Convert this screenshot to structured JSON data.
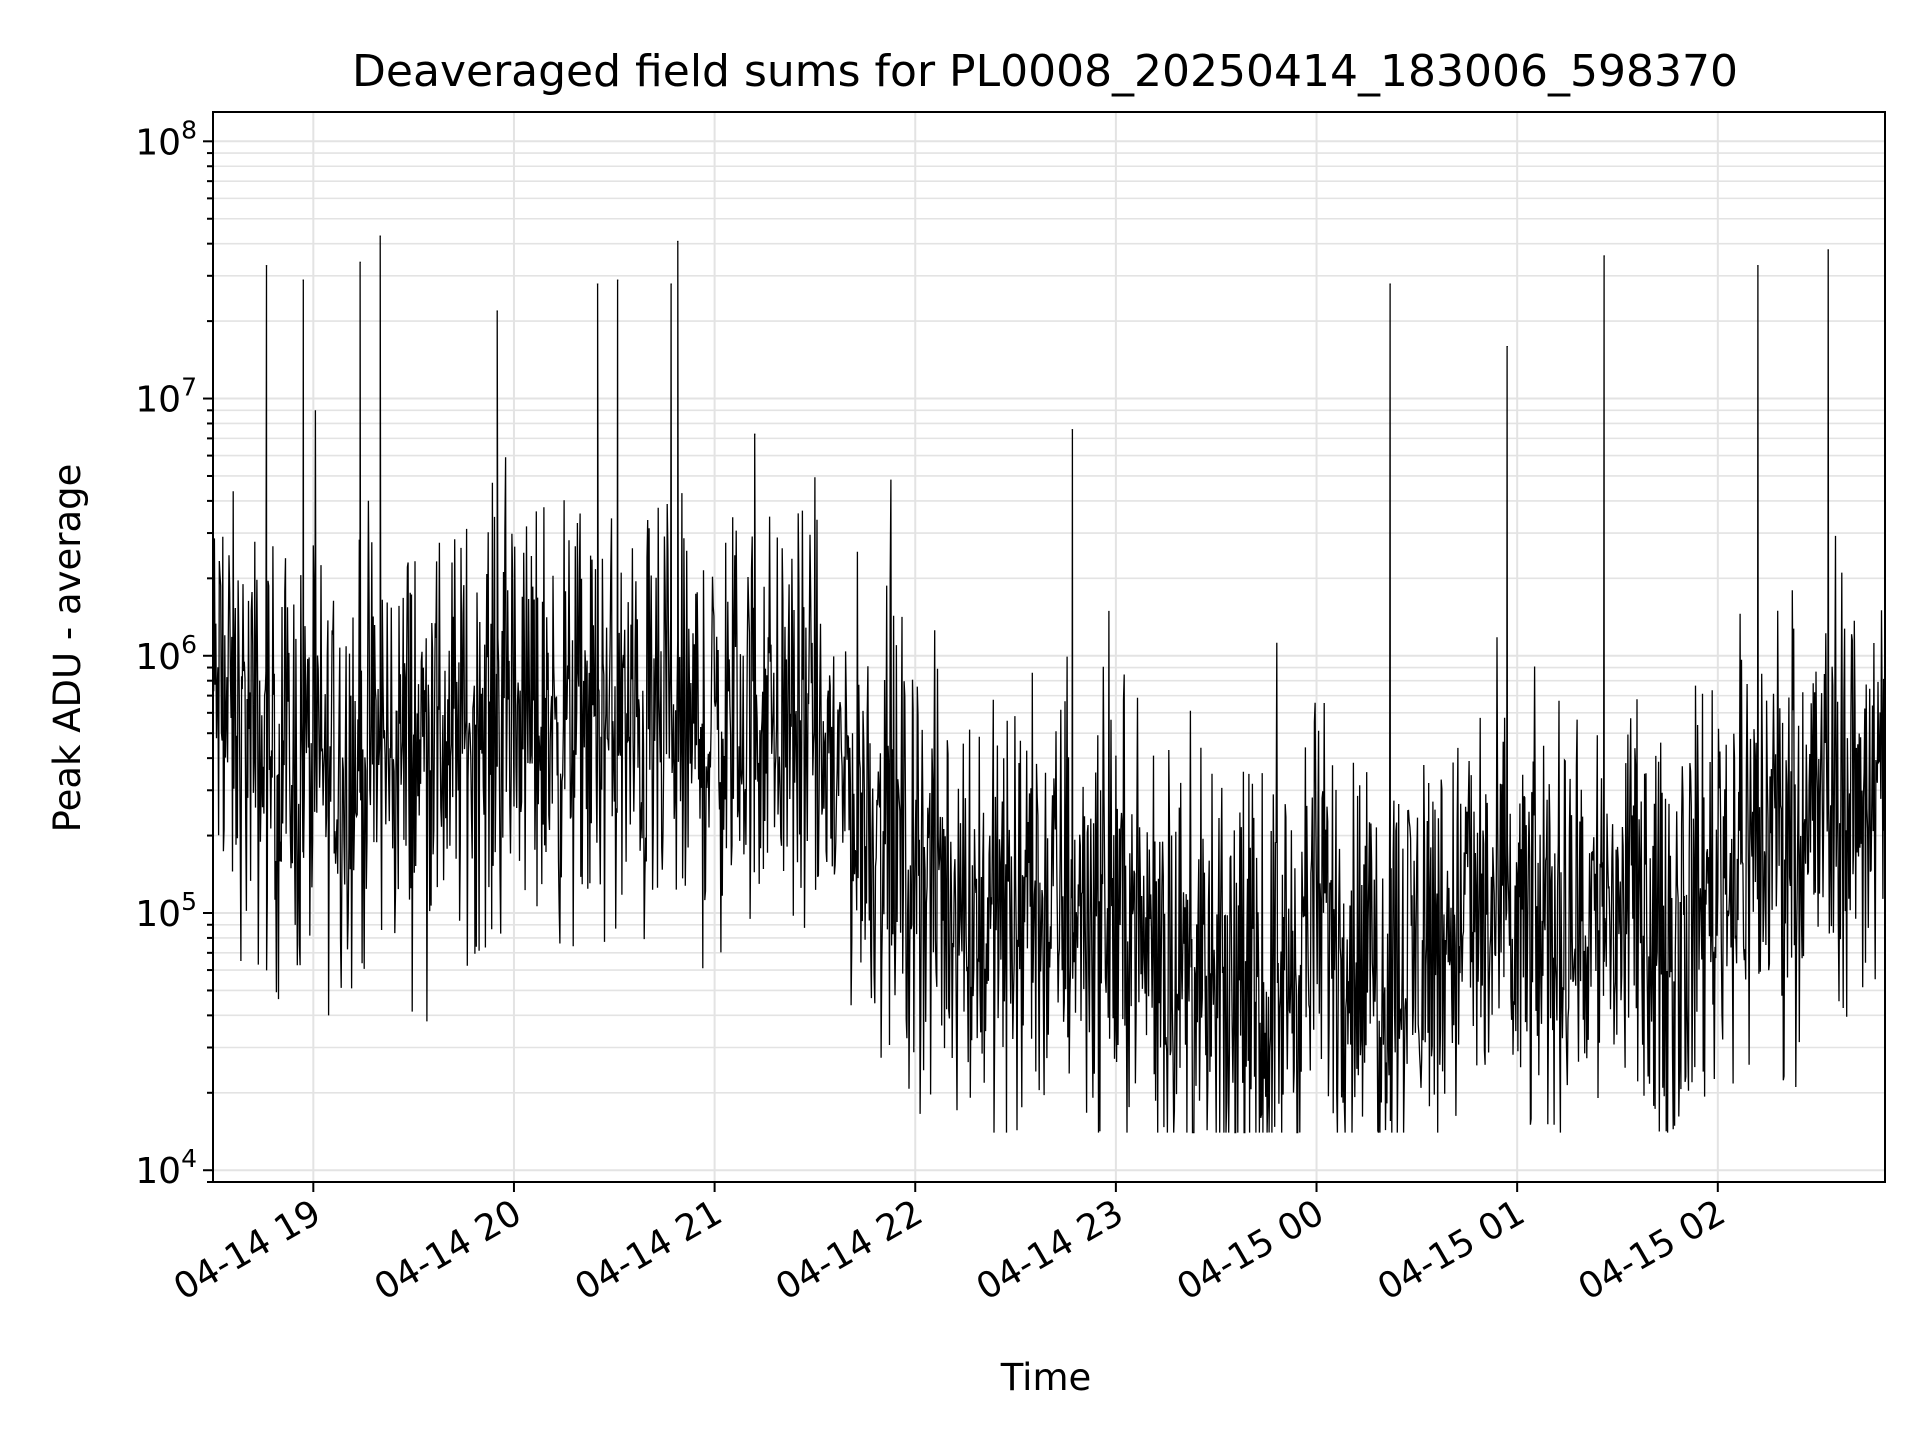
{
  "chart_data": {
    "type": "line",
    "title": "Deaveraged field sums for PL0008_20250414_183006_598370",
    "xlabel": "Time",
    "ylabel": "Peak ADU - average",
    "y_scale": "log",
    "ylim": [
      9000,
      130000000
    ],
    "xlim": [
      "2025-04-14 18:30",
      "2025-04-15 02:50"
    ],
    "grid": true,
    "line_color": "#000000",
    "x_ticks": [
      "04-14 19",
      "04-14 20",
      "04-14 21",
      "04-14 22",
      "04-14 23",
      "04-15 00",
      "04-15 01",
      "04-15 02"
    ],
    "y_ticks": [
      {
        "value": 10000,
        "base": "10",
        "exp": "4"
      },
      {
        "value": 100000,
        "base": "10",
        "exp": "5"
      },
      {
        "value": 1000000,
        "base": "10",
        "exp": "6"
      },
      {
        "value": 10000000,
        "base": "10",
        "exp": "7"
      },
      {
        "value": 100000000,
        "base": "10",
        "exp": "8"
      }
    ],
    "series": [
      {
        "x": [
          "2025-04-14 18:30",
          "2025-04-14 18:45",
          "2025-04-14 19:00",
          "2025-04-14 19:15",
          "2025-04-14 19:30",
          "2025-04-14 19:45",
          "2025-04-14 20:00",
          "2025-04-14 20:15",
          "2025-04-14 20:30",
          "2025-04-14 20:45",
          "2025-04-14 21:00",
          "2025-04-14 21:15",
          "2025-04-14 21:30",
          "2025-04-14 21:45",
          "2025-04-14 22:00",
          "2025-04-14 22:15",
          "2025-04-14 22:30",
          "2025-04-14 22:45",
          "2025-04-14 23:00",
          "2025-04-14 23:15",
          "2025-04-14 23:30",
          "2025-04-14 23:45",
          "2025-04-15 00:00",
          "2025-04-15 00:15",
          "2025-04-15 00:30",
          "2025-04-15 00:45",
          "2025-04-15 01:00",
          "2025-04-15 01:15",
          "2025-04-15 01:30",
          "2025-04-15 01:45",
          "2025-04-15 02:00",
          "2025-04-15 02:15",
          "2025-04-15 02:30",
          "2025-04-15 02:45"
        ],
        "y": [
          700000,
          400000,
          350000,
          400000,
          450000,
          500000,
          600000,
          550000,
          500000,
          450000,
          500000,
          600000,
          450000,
          250000,
          150000,
          100000,
          90000,
          110000,
          100000,
          70000,
          40000,
          40000,
          100000,
          60000,
          70000,
          100000,
          80000,
          90000,
          100000,
          70000,
          150000,
          200000,
          250000,
          300000
        ],
        "spikes": [
          {
            "x": "2025-04-14 18:46",
            "y": 33000000
          },
          {
            "x": "2025-04-14 18:57",
            "y": 29000000
          },
          {
            "x": "2025-04-14 19:14",
            "y": 34000000
          },
          {
            "x": "2025-04-14 19:20",
            "y": 43000000
          },
          {
            "x": "2025-04-14 19:55",
            "y": 22000000
          },
          {
            "x": "2025-04-14 20:25",
            "y": 28000000
          },
          {
            "x": "2025-04-14 20:31",
            "y": 29000000
          },
          {
            "x": "2025-04-14 20:47",
            "y": 28000000
          },
          {
            "x": "2025-04-14 20:49",
            "y": 41000000
          },
          {
            "x": "2025-04-14 21:12",
            "y": 7300000
          },
          {
            "x": "2025-04-14 22:47",
            "y": 7600000
          },
          {
            "x": "2025-04-15 00:22",
            "y": 28000000
          },
          {
            "x": "2025-04-15 00:57",
            "y": 16000000
          },
          {
            "x": "2025-04-15 01:26",
            "y": 36000000
          },
          {
            "x": "2025-04-15 02:12",
            "y": 33000000
          },
          {
            "x": "2025-04-15 02:33",
            "y": 38000000
          }
        ]
      }
    ]
  }
}
